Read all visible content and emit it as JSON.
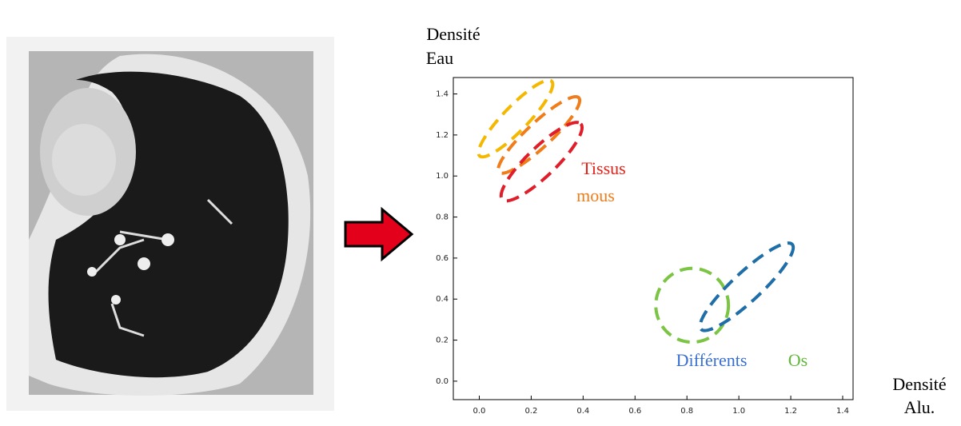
{
  "chart_data": {
    "type": "ellipse",
    "y_label": [
      "Densité",
      "Eau"
    ],
    "x_label": [
      "Densité",
      "Alu."
    ],
    "annotations": [
      {
        "text": "Tissus",
        "color": "#e32219"
      },
      {
        "text": "mous",
        "color": "#f07c1a"
      },
      {
        "text": "Différents",
        "color": "#3a6fd0"
      },
      {
        "text": "Os",
        "color": "#5fb83a"
      }
    ],
    "xlim": [
      -0.1,
      1.44
    ],
    "ylim": [
      -0.09,
      1.48
    ],
    "xticks": [
      {
        "value": 0,
        "label": "0.0"
      },
      {
        "value": 0.2,
        "label": "0.2"
      },
      {
        "value": 0.4,
        "label": "0.4"
      },
      {
        "value": 0.6,
        "label": "0.6"
      },
      {
        "value": 0.8,
        "label": "0.8"
      },
      {
        "value": 1,
        "label": "1.0"
      },
      {
        "value": 1.2,
        "label": "1.2"
      },
      {
        "value": 1.4,
        "label": "1.4"
      }
    ],
    "yticks": [
      {
        "value": 0,
        "label": "0.0"
      },
      {
        "value": 0.2,
        "label": "0.2"
      },
      {
        "value": 0.4,
        "label": "0.4"
      },
      {
        "value": 0.6,
        "label": "0.6"
      },
      {
        "value": 0.8,
        "label": "0.8"
      },
      {
        "value": 1,
        "label": "1.0"
      },
      {
        "value": 1.2,
        "label": "1.2"
      },
      {
        "value": 1.4,
        "label": "1.4"
      }
    ],
    "series": [
      {
        "color": "#f5b800",
        "cx": 0.14,
        "cy": 1.28,
        "rx": 0.2,
        "ry": 0.06,
        "angle": -46
      },
      {
        "color": "#f07c1a",
        "cx": 0.23,
        "cy": 1.2,
        "rx": 0.21,
        "ry": 0.06,
        "angle": -43
      },
      {
        "color": "#e01e2a",
        "cx": 0.24,
        "cy": 1.07,
        "rx": 0.21,
        "ry": 0.07,
        "angle": -44
      },
      {
        "color": "#7cc443",
        "cx": 0.82,
        "cy": 0.37,
        "rx": 0.14,
        "ry": 0.18,
        "angle": 0
      },
      {
        "color": "#1f6ea8",
        "cx": 1.03,
        "cy": 0.46,
        "rx": 0.24,
        "ry": 0.07,
        "angle": -43
      }
    ]
  }
}
